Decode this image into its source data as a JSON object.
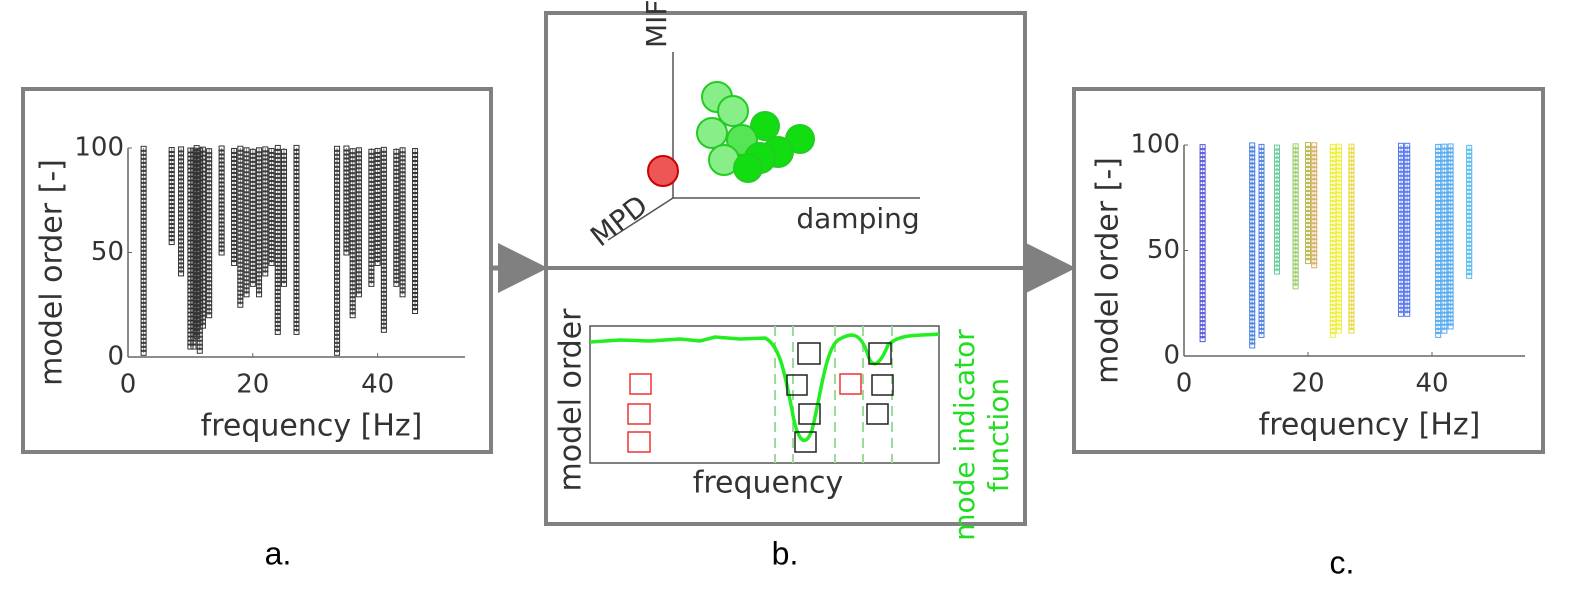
{
  "chart_data": [
    {
      "type": "stabilization",
      "xlabel": "frequency [Hz]",
      "ylabel": "model order [-]",
      "x": [
        2.5,
        7,
        8.5,
        10,
        10.5,
        11,
        11.5,
        12,
        13,
        15,
        17,
        18,
        19,
        20,
        21,
        22,
        23,
        24,
        25,
        27,
        33.5,
        35,
        36,
        37,
        39,
        40,
        41,
        43,
        44,
        46
      ],
      "values": [
        2,
        55,
        40,
        5,
        5,
        10,
        3,
        15,
        20,
        50,
        45,
        25,
        30,
        35,
        30,
        40,
        45,
        12,
        35,
        12,
        2,
        50,
        20,
        30,
        35,
        45,
        13,
        35,
        30,
        22
      ],
      "color": "#333333",
      "xlim": [
        0,
        54
      ],
      "ylim": [
        0,
        100
      ],
      "xticks": [
        0,
        20,
        40
      ],
      "yticks": [
        0,
        50,
        100
      ]
    },
    {
      "type": "stabilization",
      "xlabel": "frequency [Hz]",
      "ylabel": "model order [-]",
      "x": [
        3,
        11,
        12.5,
        15,
        18,
        20,
        21,
        24,
        25,
        27,
        35,
        36,
        41,
        42,
        43,
        46
      ],
      "values": [
        8,
        5,
        10,
        40,
        33,
        45,
        43,
        10,
        12,
        12,
        20,
        20,
        10,
        12,
        14,
        38
      ],
      "colors": [
        "#5555dd",
        "#4a80e0",
        "#4a80e0",
        "#66cc99",
        "#99cc66",
        "#bbbb55",
        "#d8b060",
        "#eeee44",
        "#eeee44",
        "#e8d840",
        "#5577ee",
        "#5577ee",
        "#55aaee",
        "#55aaee",
        "#55aaee",
        "#55bbee"
      ],
      "xlim": [
        0,
        55
      ],
      "ylim": [
        0,
        100
      ],
      "xticks": [
        0,
        20,
        40
      ],
      "yticks": [
        0,
        50,
        100
      ]
    }
  ],
  "diagram": {
    "axis_mif": "MIF",
    "axis_mpd": "MPD",
    "axis_damping": "damping",
    "mif_ylabel": "model order",
    "mif_xlabel": "frequency",
    "mif_legend": [
      "mode indicator",
      "function"
    ]
  },
  "captions": [
    "a.",
    "b.",
    "c."
  ]
}
